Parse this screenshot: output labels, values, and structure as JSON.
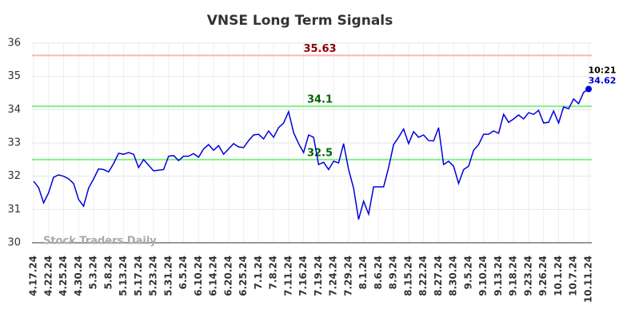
{
  "chart_data": {
    "type": "line",
    "title": "VNSE Long Term Signals",
    "categories": [
      "4.17.24",
      null,
      null,
      "4.22.24",
      null,
      null,
      "4.25.24",
      null,
      null,
      "4.30.24",
      null,
      null,
      "5.3.24",
      null,
      null,
      "5.8.24",
      null,
      null,
      "5.13.24",
      null,
      null,
      "5.17.24",
      null,
      null,
      "5.23.24",
      null,
      null,
      "5.31.24",
      null,
      null,
      "6.5.24",
      null,
      null,
      "6.10.24",
      null,
      null,
      "6.14.24",
      null,
      null,
      "6.20.24",
      null,
      null,
      "6.25.24",
      null,
      null,
      "7.1.24",
      null,
      null,
      "7.8.24",
      null,
      null,
      "7.11.24",
      null,
      null,
      "7.16.24",
      null,
      null,
      "7.19.24",
      null,
      null,
      "7.24.24",
      null,
      null,
      "7.29.24",
      null,
      null,
      "8.1.24",
      null,
      null,
      "8.6.24",
      null,
      null,
      "8.9.24",
      null,
      null,
      "8.15.24",
      null,
      null,
      "8.22.24",
      null,
      null,
      "8.27.24",
      null,
      null,
      "8.30.24",
      null,
      null,
      "9.5.24",
      null,
      null,
      "9.10.24",
      null,
      null,
      "9.13.24",
      null,
      null,
      "9.18.24",
      null,
      null,
      "9.23.24",
      null,
      null,
      "9.26.24",
      null,
      null,
      "10.1.24",
      null,
      null,
      "10.7.24",
      null,
      null,
      "10.11.24"
    ],
    "values": [
      31.85,
      31.66,
      31.2,
      31.5,
      31.97,
      32.04,
      32.0,
      31.92,
      31.78,
      31.3,
      31.1,
      31.64,
      31.92,
      32.22,
      32.2,
      32.13,
      32.38,
      32.69,
      32.66,
      32.71,
      32.66,
      32.26,
      32.5,
      32.33,
      32.16,
      32.18,
      32.2,
      32.6,
      32.62,
      32.47,
      32.6,
      32.6,
      32.68,
      32.57,
      32.82,
      32.95,
      32.78,
      32.92,
      32.66,
      32.82,
      32.98,
      32.88,
      32.86,
      33.07,
      33.24,
      33.26,
      33.12,
      33.36,
      33.17,
      33.46,
      33.6,
      33.94,
      33.31,
      32.98,
      32.71,
      33.24,
      33.17,
      32.35,
      32.42,
      32.2,
      32.45,
      32.4,
      32.98,
      32.2,
      31.64,
      30.7,
      31.25,
      30.86,
      31.68,
      31.68,
      31.68,
      32.26,
      32.95,
      33.17,
      33.42,
      32.98,
      33.34,
      33.17,
      33.24,
      33.07,
      33.06,
      33.46,
      32.35,
      32.45,
      32.3,
      31.78,
      32.2,
      32.3,
      32.78,
      32.95,
      33.26,
      33.26,
      33.36,
      33.29,
      33.86,
      33.62,
      33.72,
      33.84,
      33.72,
      33.91,
      33.86,
      33.98,
      33.6,
      33.62,
      33.96,
      33.6,
      34.08,
      34.03,
      34.32,
      34.18,
      34.52,
      34.62
    ],
    "color": "#0000dd",
    "ylim": [
      30,
      36
    ],
    "yticks": [
      30,
      31,
      32,
      33,
      34,
      35,
      36
    ],
    "grid": true,
    "hlines": [
      {
        "value": 35.63,
        "color": "#ffb3b3",
        "label_color": "#8b0000"
      },
      {
        "value": 34.1,
        "color": "#88ee88",
        "label_color": "#006400"
      },
      {
        "value": 32.5,
        "color": "#88ee88",
        "label_color": "#006400"
      }
    ],
    "last_annotation": "10:21",
    "watermark": "Stock Traders Daily"
  }
}
